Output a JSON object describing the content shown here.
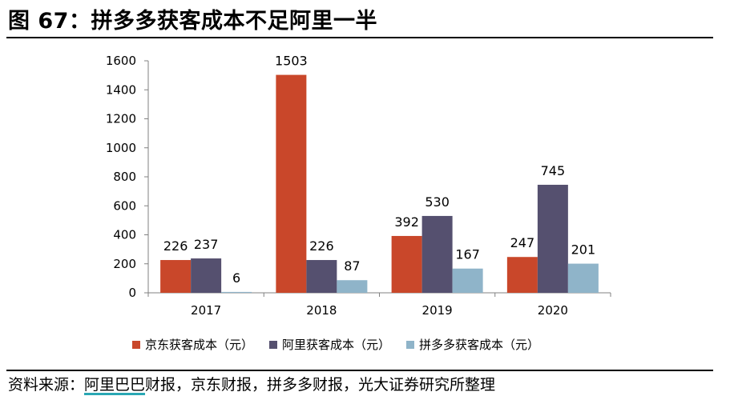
{
  "title": "图 67：拼多多获客成本不足阿里一半",
  "source": {
    "prefix": "资料来源：",
    "link": "阿里巴巴",
    "rest": "财报，京东财报，拼多多财报，光大证券研究所整理"
  },
  "chart_data": {
    "type": "bar",
    "title": "",
    "xlabel": "",
    "ylabel": "",
    "categories": [
      "2017",
      "2018",
      "2019",
      "2020"
    ],
    "ylim": [
      0,
      1600
    ],
    "yticks": [
      0,
      200,
      400,
      600,
      800,
      1000,
      1200,
      1400,
      1600
    ],
    "grid": false,
    "legend_position": "bottom",
    "series": [
      {
        "name": "京东获客成本（元）",
        "color": "#c9472a",
        "values": [
          226,
          1503,
          392,
          247
        ]
      },
      {
        "name": "阿里获客成本（元）",
        "color": "#55506f",
        "values": [
          237,
          226,
          530,
          745
        ]
      },
      {
        "name": "拼多多获客成本（元）",
        "color": "#8fb4c9",
        "values": [
          6,
          87,
          167,
          201
        ]
      }
    ]
  }
}
